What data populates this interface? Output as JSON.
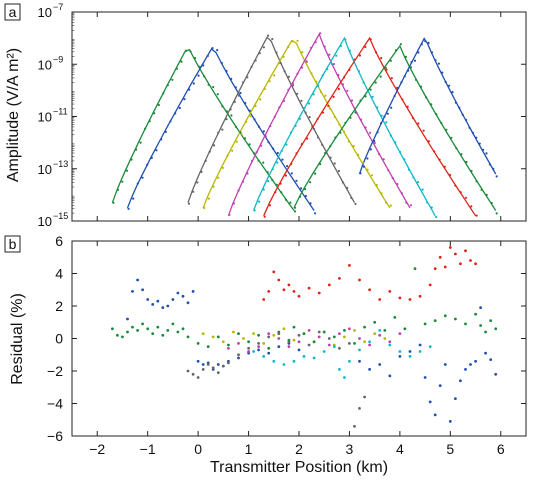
{
  "chart_data": [
    {
      "panel_label": "a",
      "type": "line",
      "ylabel": "Amplitude (V/A m²)",
      "yscale": "log",
      "xlim": [
        -2.5,
        6.5
      ],
      "ylim_exponents": [
        -15,
        -7
      ],
      "yticks": [
        {
          "exp": -15,
          "label": "10",
          "sup": "−15"
        },
        {
          "exp": -13,
          "label": "10",
          "sup": "−13"
        },
        {
          "exp": -11,
          "label": "10",
          "sup": "−11"
        },
        {
          "exp": -9,
          "label": "10",
          "sup": "−9"
        },
        {
          "exp": -7,
          "label": "10",
          "sup": "−7"
        }
      ],
      "grid": false,
      "series": [
        {
          "color": "#1a8a3a",
          "peak_x": -0.2,
          "peak_log": -8.3,
          "start_x": -1.7,
          "start_log": -14.3,
          "end_x": 1.9,
          "end_log": -14.6
        },
        {
          "color": "#1f4fb0",
          "peak_x": 0.3,
          "peak_log": -8.3,
          "start_x": -1.4,
          "start_log": -14.5,
          "end_x": 2.3,
          "end_log": -14.6
        },
        {
          "color": "#666666",
          "peak_x": 1.4,
          "peak_log": -7.85,
          "start_x": -0.2,
          "start_log": -14.3,
          "end_x": 3.1,
          "end_log": -14.3
        },
        {
          "color": "#b8b800",
          "peak_x": 1.9,
          "peak_log": -7.95,
          "start_x": 0.1,
          "start_log": -14.5,
          "end_x": 3.8,
          "end_log": -14.5
        },
        {
          "color": "#c040b0",
          "peak_x": 2.4,
          "peak_log": -7.85,
          "start_x": 0.6,
          "start_log": -14.8,
          "end_x": 4.2,
          "end_log": -14.5
        },
        {
          "color": "#10b8c8",
          "peak_x": 2.9,
          "peak_log": -8.0,
          "start_x": 1.1,
          "start_log": -14.6,
          "end_x": 4.7,
          "end_log": -14.8
        },
        {
          "color": "#e0231a",
          "peak_x": 3.4,
          "peak_log": -8.0,
          "start_x": 1.3,
          "start_log": -14.8,
          "end_x": 5.5,
          "end_log": -14.8
        },
        {
          "color": "#1a8a3a",
          "peak_x": 4.0,
          "peak_log": -8.3,
          "start_x": 1.9,
          "start_log": -14.5,
          "end_x": 5.9,
          "end_log": -14.6
        },
        {
          "color": "#1f4fb0",
          "peak_x": 4.5,
          "peak_log": -7.95,
          "start_x": 3.2,
          "start_log": -13.2,
          "end_x": 5.9,
          "end_log": -13.2
        }
      ]
    },
    {
      "panel_label": "b",
      "type": "scatter",
      "xlabel": "Transmitter Position (km)",
      "ylabel": "Residual (%)",
      "xlim": [
        -2.5,
        6.5
      ],
      "ylim": [
        -6,
        6
      ],
      "xticks": [
        -2,
        -1,
        0,
        1,
        2,
        3,
        4,
        5,
        6
      ],
      "yticks": [
        -6,
        -4,
        -2,
        0,
        2,
        4,
        6
      ],
      "grid": false,
      "series": [
        {
          "color": "#1a8a3a",
          "points": [
            [
              -1.7,
              0.6
            ],
            [
              -1.6,
              0.2
            ],
            [
              -1.5,
              0.1
            ],
            [
              -1.4,
              0.4
            ],
            [
              -1.3,
              0.7
            ],
            [
              -1.2,
              0.5
            ],
            [
              -1.1,
              0.9
            ],
            [
              -1.0,
              0.6
            ],
            [
              -0.9,
              0.3
            ],
            [
              -0.8,
              0.7
            ],
            [
              -0.7,
              0.2
            ],
            [
              -0.6,
              0.5
            ],
            [
              -0.5,
              0.9
            ],
            [
              -0.4,
              0.4
            ],
            [
              -0.3,
              0.6
            ],
            [
              -0.2,
              0.1
            ],
            [
              0.0,
              -0.3
            ],
            [
              0.2,
              -0.5
            ],
            [
              0.4,
              0.1
            ],
            [
              0.6,
              -0.4
            ],
            [
              0.8,
              0.3
            ],
            [
              1.0,
              -0.2
            ],
            [
              1.2,
              0.2
            ],
            [
              1.4,
              -0.6
            ],
            [
              1.6,
              0.4
            ],
            [
              1.8,
              -0.1
            ]
          ]
        },
        {
          "color": "#1f4fb0",
          "points": [
            [
              -1.4,
              1.2
            ],
            [
              -1.3,
              2.9
            ],
            [
              -1.2,
              3.6
            ],
            [
              -1.1,
              3.0
            ],
            [
              -1.0,
              2.4
            ],
            [
              -0.9,
              2.1
            ],
            [
              -0.8,
              2.3
            ],
            [
              -0.7,
              1.9
            ],
            [
              -0.6,
              2.0
            ],
            [
              -0.5,
              2.4
            ],
            [
              -0.4,
              2.8
            ],
            [
              -0.3,
              2.6
            ],
            [
              -0.2,
              2.2
            ],
            [
              -0.1,
              2.9
            ],
            [
              0.0,
              -1.4
            ],
            [
              0.1,
              -1.6
            ],
            [
              0.2,
              -1.5
            ],
            [
              0.3,
              -1.9
            ],
            [
              0.4,
              -1.6
            ],
            [
              0.5,
              -1.7
            ],
            [
              0.6,
              -1.4
            ],
            [
              0.8,
              -1.2
            ],
            [
              1.0,
              -0.9
            ],
            [
              1.2,
              -0.7
            ],
            [
              1.4,
              -0.9
            ],
            [
              1.6,
              -0.5
            ],
            [
              1.8,
              -0.3
            ],
            [
              2.0,
              -0.7
            ]
          ]
        },
        {
          "color": "#666666",
          "points": [
            [
              -0.2,
              -2.0
            ],
            [
              -0.1,
              -2.2
            ],
            [
              0.0,
              -2.4
            ],
            [
              0.1,
              -1.9
            ],
            [
              0.2,
              -1.6
            ],
            [
              0.3,
              -1.8
            ],
            [
              0.4,
              -2.1
            ],
            [
              0.5,
              -1.7
            ],
            [
              0.6,
              -1.5
            ],
            [
              0.8,
              -1.0
            ],
            [
              1.0,
              -0.6
            ],
            [
              1.2,
              -0.3
            ],
            [
              1.4,
              0.1
            ],
            [
              1.6,
              0.3
            ],
            [
              1.8,
              -0.2
            ],
            [
              2.0,
              0.2
            ],
            [
              2.2,
              -0.4
            ],
            [
              2.4,
              0.4
            ],
            [
              2.6,
              0.0
            ],
            [
              2.8,
              -0.6
            ],
            [
              3.0,
              -0.3
            ],
            [
              3.2,
              -4.3
            ],
            [
              3.3,
              -3.6
            ],
            [
              3.1,
              -5.4
            ]
          ]
        },
        {
          "color": "#b8b800",
          "points": [
            [
              0.1,
              0.3
            ],
            [
              0.3,
              0.1
            ],
            [
              0.5,
              -0.2
            ],
            [
              0.7,
              0.4
            ],
            [
              0.9,
              0.0
            ],
            [
              1.1,
              0.3
            ],
            [
              1.3,
              -0.3
            ],
            [
              1.5,
              0.2
            ],
            [
              1.7,
              0.6
            ],
            [
              1.9,
              -0.1
            ],
            [
              2.1,
              0.3
            ],
            [
              2.3,
              -0.2
            ],
            [
              2.5,
              0.4
            ],
            [
              2.7,
              -0.4
            ],
            [
              2.9,
              0.1
            ],
            [
              3.1,
              0.5
            ],
            [
              3.3,
              -0.2
            ],
            [
              3.5,
              0.3
            ],
            [
              3.7,
              0.0
            ]
          ]
        },
        {
          "color": "#c040b0",
          "points": [
            [
              0.6,
              -0.6
            ],
            [
              0.8,
              -0.3
            ],
            [
              1.0,
              -0.8
            ],
            [
              1.2,
              -0.5
            ],
            [
              1.4,
              0.3
            ],
            [
              1.6,
              0.0
            ],
            [
              1.8,
              -0.5
            ],
            [
              2.0,
              -0.2
            ],
            [
              2.2,
              0.5
            ],
            [
              2.4,
              0.1
            ],
            [
              2.6,
              -0.4
            ],
            [
              2.8,
              0.3
            ],
            [
              3.0,
              0.6
            ],
            [
              3.2,
              0.0
            ],
            [
              3.4,
              -0.4
            ],
            [
              3.6,
              0.2
            ],
            [
              3.8,
              -0.2
            ],
            [
              4.0,
              0.3
            ]
          ]
        },
        {
          "color": "#10b8c8",
          "points": [
            [
              1.1,
              -0.8
            ],
            [
              1.3,
              -1.1
            ],
            [
              1.5,
              -1.4
            ],
            [
              1.7,
              -1.6
            ],
            [
              1.9,
              -1.4
            ],
            [
              2.1,
              -1.1
            ],
            [
              2.3,
              -1.2
            ],
            [
              2.5,
              -0.8
            ],
            [
              2.7,
              -0.5
            ],
            [
              2.8,
              -1.9
            ],
            [
              2.9,
              -2.4
            ],
            [
              3.0,
              -1.4
            ],
            [
              3.2,
              -0.7
            ],
            [
              3.4,
              -0.2
            ],
            [
              3.6,
              0.5
            ],
            [
              3.8,
              -0.4
            ],
            [
              4.0,
              -0.8
            ],
            [
              4.2,
              -1.1
            ],
            [
              4.4,
              -0.8
            ],
            [
              4.6,
              -0.5
            ]
          ]
        },
        {
          "color": "#e0231a",
          "points": [
            [
              1.3,
              2.4
            ],
            [
              1.4,
              2.9
            ],
            [
              1.5,
              4.1
            ],
            [
              1.6,
              3.6
            ],
            [
              1.7,
              3.0
            ],
            [
              1.8,
              3.3
            ],
            [
              1.9,
              2.9
            ],
            [
              2.0,
              2.6
            ],
            [
              2.2,
              3.1
            ],
            [
              2.4,
              2.8
            ],
            [
              2.6,
              3.3
            ],
            [
              2.8,
              3.7
            ],
            [
              3.0,
              4.5
            ],
            [
              3.2,
              3.6
            ],
            [
              3.4,
              3.0
            ],
            [
              3.6,
              2.4
            ],
            [
              3.8,
              2.9
            ],
            [
              4.0,
              2.5
            ],
            [
              4.2,
              2.4
            ],
            [
              4.4,
              2.6
            ],
            [
              4.6,
              3.3
            ],
            [
              4.7,
              4.3
            ],
            [
              4.8,
              5.0
            ],
            [
              4.9,
              4.4
            ],
            [
              5.0,
              5.6
            ],
            [
              5.1,
              5.2
            ],
            [
              5.2,
              4.6
            ],
            [
              5.3,
              5.4
            ],
            [
              5.4,
              4.8
            ],
            [
              5.5,
              4.6
            ]
          ]
        },
        {
          "color": "#1a8a3a",
          "points": [
            [
              1.9,
              0.7
            ],
            [
              2.1,
              0.3
            ],
            [
              2.3,
              -0.2
            ],
            [
              2.5,
              0.4
            ],
            [
              2.7,
              0.1
            ],
            [
              2.9,
              0.5
            ],
            [
              3.1,
              -0.3
            ],
            [
              3.3,
              0.7
            ],
            [
              3.5,
              1.0
            ],
            [
              3.7,
              0.5
            ],
            [
              3.9,
              1.3
            ],
            [
              4.1,
              0.6
            ],
            [
              4.3,
              4.3
            ],
            [
              4.5,
              0.9
            ],
            [
              4.7,
              1.1
            ],
            [
              4.9,
              1.4
            ],
            [
              5.1,
              1.2
            ],
            [
              5.3,
              0.9
            ],
            [
              5.5,
              1.5
            ],
            [
              5.6,
              0.8
            ],
            [
              5.7,
              0.4
            ],
            [
              5.8,
              1.1
            ],
            [
              5.9,
              0.6
            ]
          ]
        },
        {
          "color": "#1f4fb0",
          "points": [
            [
              3.2,
              -1.4
            ],
            [
              3.4,
              -1.9
            ],
            [
              3.6,
              -1.6
            ],
            [
              3.8,
              -2.3
            ],
            [
              4.0,
              -1.1
            ],
            [
              4.2,
              -0.8
            ],
            [
              4.4,
              -0.4
            ],
            [
              4.5,
              -2.4
            ],
            [
              4.6,
              -3.9
            ],
            [
              4.7,
              -4.7
            ],
            [
              4.8,
              -2.9
            ],
            [
              4.9,
              -1.6
            ],
            [
              5.0,
              -5.1
            ],
            [
              5.1,
              -3.7
            ],
            [
              5.2,
              -2.6
            ],
            [
              5.3,
              -1.9
            ],
            [
              5.4,
              -1.6
            ],
            [
              5.5,
              -1.4
            ],
            [
              5.6,
              1.9
            ],
            [
              5.7,
              -0.9
            ],
            [
              5.8,
              -1.3
            ],
            [
              5.9,
              -2.2
            ]
          ]
        }
      ]
    }
  ]
}
